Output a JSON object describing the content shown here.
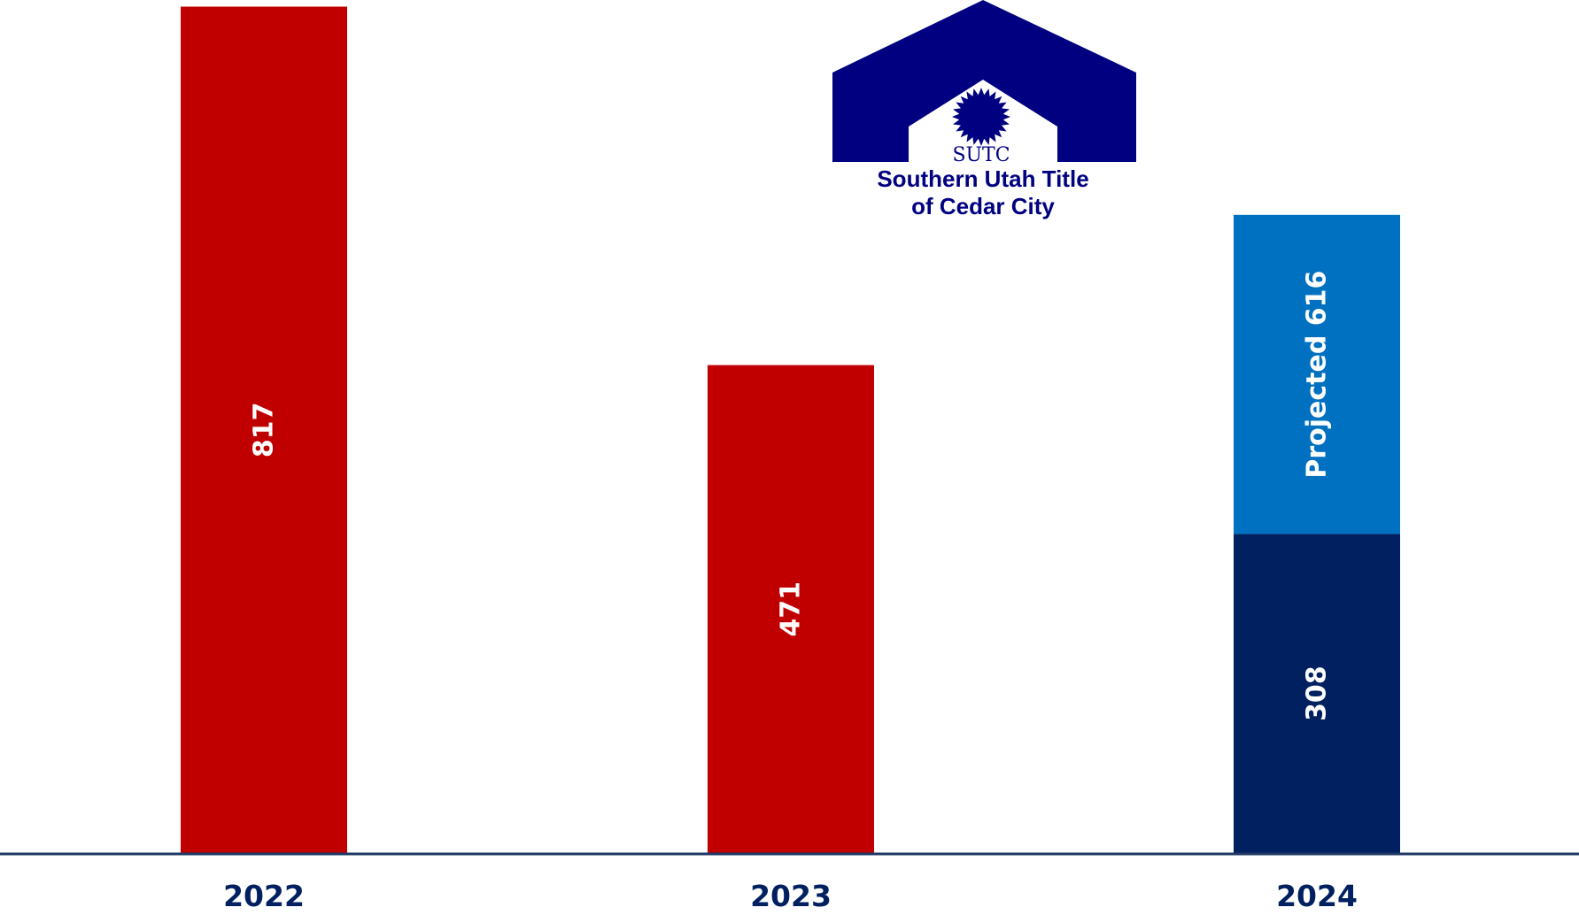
{
  "chart_data": {
    "type": "bar",
    "categories": [
      "2022",
      "2023",
      "2024"
    ],
    "series": [
      {
        "values": [
          817,
          471,
          308
        ],
        "colors": [
          "#C00000",
          "#C00000",
          "#002060"
        ]
      },
      {
        "values": [
          0,
          0,
          308
        ],
        "colors": [
          "#C00000",
          "#C00000",
          "#0070C0"
        ]
      }
    ],
    "bar_labels": [
      {
        "category": "2022",
        "text": "817"
      },
      {
        "category": "2023",
        "text": "471"
      },
      {
        "category": "2024",
        "text": "308"
      },
      {
        "category": "2024",
        "text": "Projected 616"
      }
    ],
    "title": "",
    "xlabel": "",
    "ylabel": "",
    "ylim": [
      0,
      820
    ],
    "grid": false,
    "legend": "none",
    "axis_color": "#1F3864",
    "tick_label_color": "#002060"
  },
  "logo": {
    "abbr": "SUTC",
    "name_line1": "Southern Utah Title",
    "name_line2": "of Cedar City",
    "color": "#000080"
  }
}
